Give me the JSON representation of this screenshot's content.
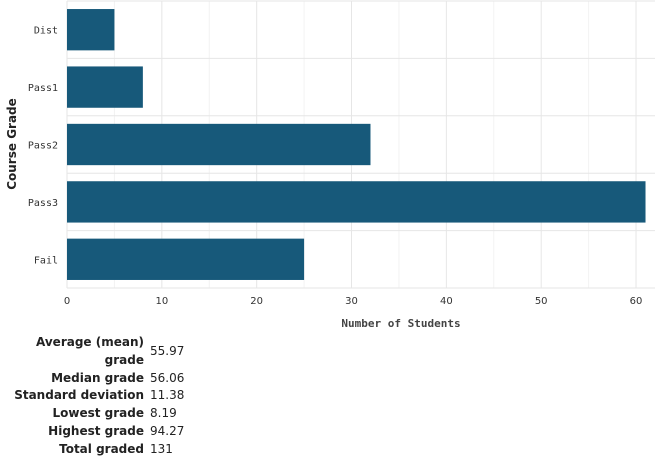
{
  "chart_data": {
    "type": "bar",
    "orientation": "horizontal",
    "categories": [
      "Dist",
      "Pass1",
      "Pass2",
      "Pass3",
      "Fail"
    ],
    "values": [
      5,
      8,
      32,
      61,
      25
    ],
    "xlabel": "Number of Students",
    "ylabel": "Course Grade",
    "xlim": [
      0,
      62
    ],
    "xticks": [
      0,
      10,
      20,
      30,
      40,
      50,
      60
    ],
    "grid": true,
    "bar_color": "#17597a"
  },
  "stats": [
    {
      "label": "Average (mean) grade",
      "value": "55.97"
    },
    {
      "label": "Median grade",
      "value": "56.06"
    },
    {
      "label": "Standard deviation",
      "value": "11.38"
    },
    {
      "label": "Lowest grade",
      "value": "8.19"
    },
    {
      "label": "Highest grade",
      "value": "94.27"
    },
    {
      "label": "Total graded",
      "value": "131"
    }
  ]
}
